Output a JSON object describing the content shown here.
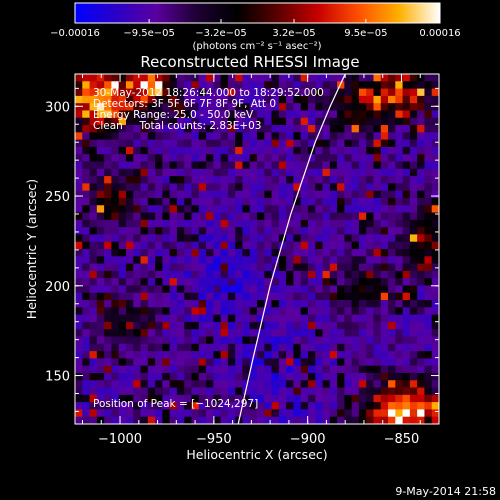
{
  "chart_data": {
    "type": "heatmap",
    "title": "Reconstructed RHESSI Image",
    "xlabel": "Heliocentric X (arcsec)",
    "ylabel": "Heliocentric Y (arcsec)",
    "xlim": [
      -1024,
      -830
    ],
    "ylim": [
      123,
      318
    ],
    "x_ticks": [
      {
        "value": -1000,
        "label": "−1000"
      },
      {
        "value": -950,
        "label": "−950"
      },
      {
        "value": -900,
        "label": "−900"
      },
      {
        "value": -850,
        "label": "−850"
      }
    ],
    "y_ticks": [
      {
        "value": 150,
        "label": "150"
      },
      {
        "value": 200,
        "label": "200"
      },
      {
        "value": 250,
        "label": "250"
      },
      {
        "value": 300,
        "label": "300"
      }
    ],
    "colorbar": {
      "range": [
        -0.00016,
        0.00016
      ],
      "tick_labels": [
        {
          "value": -0.00016,
          "label": "−0.00016"
        },
        {
          "value": -9.5e-05,
          "label": "−9.5e−05"
        },
        {
          "value": -3.2e-05,
          "label": "−3.2e−05"
        },
        {
          "value": 3.2e-05,
          "label": "3.2e−05"
        },
        {
          "value": 9.5e-05,
          "label": "9.5e−05"
        },
        {
          "value": 0.00016,
          "label": "0.00016"
        }
      ],
      "unit": "(photons cm⁻² s⁻¹ asec⁻²)"
    },
    "annotations": [
      "30-May-2012 18:26:44.000 to 18:29:52.000",
      "Detectors: 3F 5F 6F 7F 8F 9F, Att 0",
      "Energy Range: 25.0 - 50.0 keV",
      "Clean     Total counts: 2.83E+03"
    ],
    "peak_label": "Position of Peak = [−1024,297]",
    "peak_position": [
      -1024,
      297
    ],
    "limb_curve": [
      [
        -937,
        123
      ],
      [
        -929,
        160
      ],
      [
        -920,
        200
      ],
      [
        -909,
        240
      ],
      [
        -896,
        280
      ],
      [
        -888,
        300
      ],
      [
        -880,
        318
      ]
    ],
    "hot_regions": [
      {
        "x": -1010,
        "y": 300,
        "amp": 1.0
      },
      {
        "x": -985,
        "y": 312,
        "amp": 0.85
      },
      {
        "x": -1018,
        "y": 318,
        "amp": 0.7
      },
      {
        "x": -845,
        "y": 132,
        "amp": 1.0
      },
      {
        "x": -860,
        "y": 126,
        "amp": 0.6
      },
      {
        "x": -850,
        "y": 308,
        "amp": 0.7
      },
      {
        "x": -872,
        "y": 300,
        "amp": 0.55
      },
      {
        "x": -835,
        "y": 225,
        "amp": 0.55
      },
      {
        "x": -1005,
        "y": 248,
        "amp": 0.35
      },
      {
        "x": -998,
        "y": 180,
        "amp": 0.35
      },
      {
        "x": -870,
        "y": 200,
        "amp": 0.35
      }
    ],
    "cold_regions": [
      {
        "x": -945,
        "y": 205,
        "amp": 0.9
      },
      {
        "x": -925,
        "y": 160,
        "amp": 0.6
      },
      {
        "x": -905,
        "y": 140,
        "amp": 0.5
      }
    ]
  },
  "footer": {
    "timestamp": "9-May-2014 21:58"
  },
  "colors": {
    "background": "#000000",
    "foreground": "#ffffff",
    "colormap": [
      "#0000ff",
      "#2a00c8",
      "#5a00a0",
      "#1e0032",
      "#000000",
      "#5a0000",
      "#c80000",
      "#ff5000",
      "#ffb000",
      "#ffffff"
    ]
  }
}
